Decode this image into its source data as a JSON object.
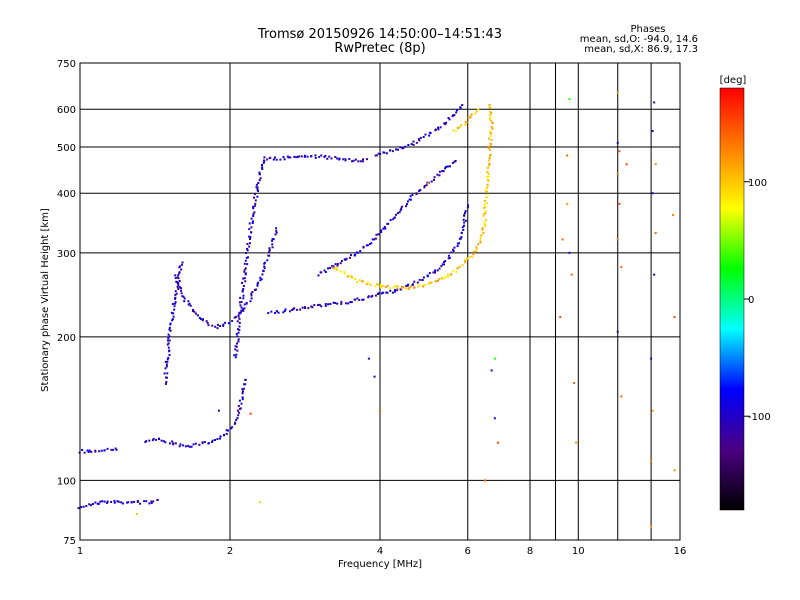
{
  "chart_data": {
    "type": "scatter",
    "title": "Tromsø 20150926 14:50:00–14:51:43",
    "subtitle": "RwPretec (8p)",
    "xlabel": "Frequency [MHz]",
    "ylabel": "Stationary phase Virtual Height [km]",
    "x_scale": "log",
    "y_scale": "log",
    "xlim": [
      1,
      16
    ],
    "ylim": [
      75,
      750
    ],
    "x_ticks": [
      1,
      2,
      4,
      6,
      8,
      10,
      16
    ],
    "x_minor_lines": [
      9,
      12,
      14
    ],
    "y_ticks": [
      75,
      100,
      200,
      300,
      400,
      500,
      600,
      750
    ],
    "grid": true,
    "phases_box": {
      "title": "Phases",
      "line1": "mean, sd,O:  -94.0, 14.6",
      "line2": "mean, sd,X:  86.9, 17.3"
    },
    "colorbar": {
      "label": "[deg]",
      "ticks": [
        -100,
        0,
        100
      ],
      "range": [
        -180,
        180
      ],
      "colors": [
        "#000000",
        "#4b0082",
        "#0000ff",
        "#00ffff",
        "#00ff00",
        "#ffff00",
        "#ff8000",
        "#ff0000"
      ]
    },
    "traces": [
      {
        "name": "",
        "phase": -100,
        "points": [
          [
            1.0,
            88
          ],
          [
            1.1,
            90
          ],
          [
            1.2,
            90
          ],
          [
            1.3,
            90
          ],
          [
            1.4,
            90
          ],
          [
            1.45,
            92
          ]
        ]
      },
      {
        "name": "",
        "phase": -100,
        "points": [
          [
            1.0,
            115
          ],
          [
            1.05,
            115
          ],
          [
            1.1,
            116
          ],
          [
            1.15,
            116
          ],
          [
            1.2,
            117
          ]
        ]
      },
      {
        "name": "",
        "phase": -100,
        "points": [
          [
            1.35,
            121
          ],
          [
            1.45,
            122
          ],
          [
            1.55,
            119
          ],
          [
            1.65,
            118
          ],
          [
            1.75,
            119
          ],
          [
            1.85,
            121
          ],
          [
            1.95,
            125
          ],
          [
            2.05,
            132
          ],
          [
            2.1,
            145
          ],
          [
            2.15,
            165
          ]
        ]
      },
      {
        "name": "",
        "phase": -100,
        "points": [
          [
            1.48,
            160
          ],
          [
            1.5,
            180
          ],
          [
            1.52,
            210
          ],
          [
            1.55,
            240
          ],
          [
            1.58,
            265
          ],
          [
            1.6,
            290
          ]
        ]
      },
      {
        "name": "",
        "phase": -100,
        "points": [
          [
            1.55,
            270
          ],
          [
            1.6,
            245
          ],
          [
            1.7,
            225
          ],
          [
            1.8,
            213
          ],
          [
            1.9,
            210
          ],
          [
            2.0,
            215
          ],
          [
            2.1,
            225
          ],
          [
            2.2,
            240
          ],
          [
            2.3,
            265
          ],
          [
            2.4,
            300
          ],
          [
            2.5,
            340
          ]
        ]
      },
      {
        "name": "",
        "phase": -100,
        "points": [
          [
            2.05,
            180
          ],
          [
            2.1,
            230
          ],
          [
            2.15,
            280
          ],
          [
            2.2,
            340
          ],
          [
            2.25,
            390
          ],
          [
            2.3,
            440
          ],
          [
            2.35,
            480
          ]
        ]
      },
      {
        "name": "",
        "phase": -100,
        "points": [
          [
            2.35,
            470
          ],
          [
            2.6,
            475
          ],
          [
            2.9,
            478
          ],
          [
            3.2,
            475
          ],
          [
            3.5,
            470
          ],
          [
            3.8,
            468
          ]
        ]
      },
      {
        "name": "",
        "phase": -100,
        "points": [
          [
            3.9,
            480
          ],
          [
            4.2,
            490
          ],
          [
            4.6,
            505
          ],
          [
            5.0,
            530
          ],
          [
            5.4,
            560
          ],
          [
            5.7,
            590
          ],
          [
            5.9,
            620
          ]
        ]
      },
      {
        "name": "",
        "phase": -100,
        "points": [
          [
            2.4,
            225
          ],
          [
            2.7,
            228
          ],
          [
            3.0,
            232
          ],
          [
            3.4,
            236
          ],
          [
            3.8,
            242
          ],
          [
            4.3,
            250
          ],
          [
            4.8,
            262
          ],
          [
            5.3,
            280
          ],
          [
            5.7,
            310
          ],
          [
            5.9,
            345
          ],
          [
            6.0,
            380
          ]
        ]
      },
      {
        "name": "",
        "phase": -100,
        "points": [
          [
            3.0,
            270
          ],
          [
            3.3,
            285
          ],
          [
            3.6,
            300
          ],
          [
            3.9,
            320
          ],
          [
            4.2,
            350
          ],
          [
            4.6,
            390
          ],
          [
            5.0,
            420
          ],
          [
            5.4,
            450
          ],
          [
            5.7,
            470
          ]
        ]
      },
      {
        "name": "",
        "phase": 100,
        "points": [
          [
            3.2,
            280
          ],
          [
            3.6,
            262
          ],
          [
            4.0,
            255
          ],
          [
            4.5,
            253
          ],
          [
            5.0,
            258
          ],
          [
            5.5,
            268
          ],
          [
            5.9,
            285
          ],
          [
            6.2,
            300
          ],
          [
            6.4,
            320
          ],
          [
            6.5,
            360
          ],
          [
            6.55,
            400
          ],
          [
            6.6,
            450
          ],
          [
            6.65,
            500
          ],
          [
            6.7,
            560
          ],
          [
            6.6,
            620
          ]
        ]
      },
      {
        "name": "",
        "phase": 100,
        "points": [
          [
            5.6,
            540
          ],
          [
            5.9,
            560
          ],
          [
            6.1,
            580
          ],
          [
            6.3,
            600
          ]
        ]
      }
    ],
    "scattered": [
      {
        "f": 9.6,
        "h": 630,
        "phase": 30
      },
      {
        "f": 9.5,
        "h": 480,
        "phase": 140
      },
      {
        "f": 9.5,
        "h": 380,
        "phase": 120
      },
      {
        "f": 9.3,
        "h": 320,
        "phase": 140
      },
      {
        "f": 9.6,
        "h": 300,
        "phase": -100
      },
      {
        "f": 9.7,
        "h": 270,
        "phase": 140
      },
      {
        "f": 9.2,
        "h": 220,
        "phase": 150
      },
      {
        "f": 9.8,
        "h": 160,
        "phase": 140
      },
      {
        "f": 9.9,
        "h": 120,
        "phase": 120
      },
      {
        "f": 12.0,
        "h": 650,
        "phase": 120
      },
      {
        "f": 12.0,
        "h": 510,
        "phase": -100
      },
      {
        "f": 12.1,
        "h": 490,
        "phase": 140
      },
      {
        "f": 12.5,
        "h": 460,
        "phase": 150
      },
      {
        "f": 12.0,
        "h": 440,
        "phase": 130
      },
      {
        "f": 12.1,
        "h": 380,
        "phase": 150
      },
      {
        "f": 12.0,
        "h": 320,
        "phase": 130
      },
      {
        "f": 12.2,
        "h": 280,
        "phase": 140
      },
      {
        "f": 12.0,
        "h": 205,
        "phase": -100
      },
      {
        "f": 12.2,
        "h": 150,
        "phase": 140
      },
      {
        "f": 14.2,
        "h": 620,
        "phase": -100
      },
      {
        "f": 14.1,
        "h": 540,
        "phase": -100
      },
      {
        "f": 14.3,
        "h": 460,
        "phase": 130
      },
      {
        "f": 14.1,
        "h": 400,
        "phase": -100
      },
      {
        "f": 14.3,
        "h": 330,
        "phase": 140
      },
      {
        "f": 14.2,
        "h": 270,
        "phase": -100
      },
      {
        "f": 14.0,
        "h": 180,
        "phase": -100
      },
      {
        "f": 14.1,
        "h": 140,
        "phase": 120
      },
      {
        "f": 14.0,
        "h": 110,
        "phase": 130
      },
      {
        "f": 14.0,
        "h": 80,
        "phase": 120
      },
      {
        "f": 15.5,
        "h": 360,
        "phase": 130
      },
      {
        "f": 15.6,
        "h": 220,
        "phase": 150
      },
      {
        "f": 15.6,
        "h": 105,
        "phase": 120
      },
      {
        "f": 6.7,
        "h": 170,
        "phase": -100
      },
      {
        "f": 6.8,
        "h": 135,
        "phase": -100
      },
      {
        "f": 6.9,
        "h": 120,
        "phase": 150
      },
      {
        "f": 6.5,
        "h": 100,
        "phase": 140
      },
      {
        "f": 6.8,
        "h": 180,
        "phase": 30
      },
      {
        "f": 3.8,
        "h": 180,
        "phase": -100
      },
      {
        "f": 3.9,
        "h": 165,
        "phase": -100
      },
      {
        "f": 4.0,
        "h": 140,
        "phase": 140
      },
      {
        "f": 2.2,
        "h": 138,
        "phase": 160
      },
      {
        "f": 2.3,
        "h": 90,
        "phase": 100
      },
      {
        "f": 1.3,
        "h": 85,
        "phase": 100
      },
      {
        "f": 1.9,
        "h": 140,
        "phase": -100
      },
      {
        "f": 5.0,
        "h": 420,
        "phase": 120
      }
    ]
  }
}
